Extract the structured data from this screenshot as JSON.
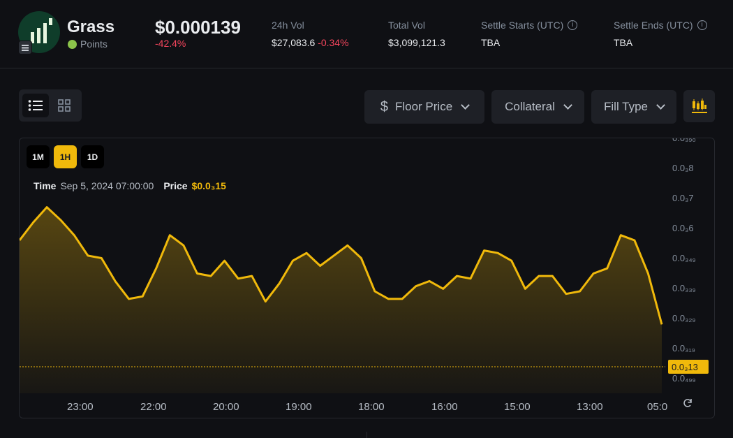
{
  "token": {
    "name": "Grass",
    "badge": "Points",
    "price": "$0.000139",
    "change": "-42.4%"
  },
  "stats": {
    "vol24h": {
      "label": "24h Vol",
      "value": "$27,083.6",
      "change": "-0.34%"
    },
    "total_vol": {
      "label": "Total Vol",
      "value": "$3,099,121.3"
    },
    "settle_start": {
      "label": "Settle Starts (UTC)",
      "value": "TBA"
    },
    "settle_end": {
      "label": "Settle Ends (UTC)",
      "value": "TBA"
    }
  },
  "toolbar": {
    "view_list_icon": "list-icon",
    "view_grid_icon": "grid-icon",
    "floor_price": "Floor Price",
    "collateral": "Collateral",
    "fill_type": "Fill Type",
    "chart_icon": "candlestick-icon"
  },
  "chart_controls": {
    "timeframes": [
      "1M",
      "1H",
      "1D"
    ],
    "active_timeframe": "1H",
    "tooltip_time_label": "Time",
    "tooltip_time_value": "Sep 5, 2024 07:00:00",
    "tooltip_price_label": "Price",
    "tooltip_price_value": "$0.0₃15"
  },
  "colors": {
    "accent": "#f0b90b",
    "negative": "#f6465d",
    "background": "#0f1014",
    "panel": "#1e2026"
  },
  "chart_data": {
    "type": "area",
    "series": [
      {
        "values": [
          60,
          67,
          73,
          68,
          62,
          54,
          53,
          44,
          37,
          38,
          49,
          62,
          58,
          47,
          46,
          52,
          45,
          46,
          36,
          43,
          52,
          55,
          50,
          54,
          58,
          53,
          40,
          37,
          37,
          42,
          44,
          41,
          46,
          45,
          56,
          55,
          52,
          41,
          46,
          46,
          39,
          40,
          47,
          49,
          62,
          60,
          47,
          27
        ],
        "highlight_value": 15
      }
    ],
    "x_tick_labels": [
      "23:00",
      "22:00",
      "20:00",
      "19:00",
      "18:00",
      "16:00",
      "15:00",
      "13:00",
      "05:0"
    ],
    "y_tick_labels": [
      "0.0₃₉₀",
      "0.0₃8",
      "0.0₃7",
      "0.0₃6",
      "0.0₃₄₉",
      "0.0₃₃₉",
      "0.0₃₂₉",
      "0.0₃₁₉",
      "0.0₄₉₉"
    ],
    "current_price_label": "0.0₃13",
    "current_value": 13,
    "ylim": [
      0,
      100
    ]
  }
}
